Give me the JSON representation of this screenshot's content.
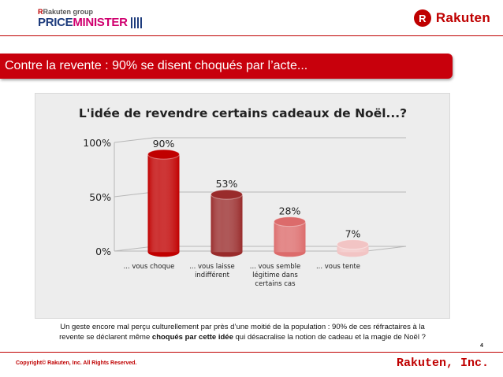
{
  "header": {
    "pm_group_prefix": "R",
    "pm_group_text": "Rakuten group",
    "pm_word_a": "PRICE",
    "pm_word_b": "MINISTER",
    "rakuten_badge": "R",
    "rakuten_logo": "Rakuten"
  },
  "banner": {
    "text": "Contre la revente : 90% se disent choqués par l’acte..."
  },
  "chart_data": {
    "type": "bar",
    "title": "L'idée de revendre certains cadeaux de Noël...?",
    "categories": [
      [
        "... vous choque"
      ],
      [
        "... vous laisse",
        "indifférent"
      ],
      [
        "... vous semble",
        "légitime dans",
        "certains cas"
      ],
      [
        "... vous tente"
      ]
    ],
    "values": [
      90,
      53,
      28,
      7
    ],
    "value_labels": [
      "90%",
      "53%",
      "28%",
      "7%"
    ],
    "colors": [
      "#c00000",
      "#992b2b",
      "#dc6b6b",
      "#f2c4c4"
    ],
    "y_ticks": [
      "0%",
      "50%",
      "100%"
    ],
    "ylim": [
      0,
      100
    ],
    "grid": true,
    "style": "3d-cylinder"
  },
  "caption": {
    "line1": "Un geste encore mal perçu culturellement par près d’une moitié de la population : 90% de ces réfractaires à la",
    "line2_pre": "revente se déclarent même ",
    "line2_bold": "choqués par cette idée",
    "line2_post": " qui désacralise la notion de cadeau et la magie de Noël ?"
  },
  "page_number": "4",
  "footer": {
    "copyright": "Copyright© Rakuten, Inc. All Rights Reserved.",
    "brand": "Rakuten, Inc."
  }
}
